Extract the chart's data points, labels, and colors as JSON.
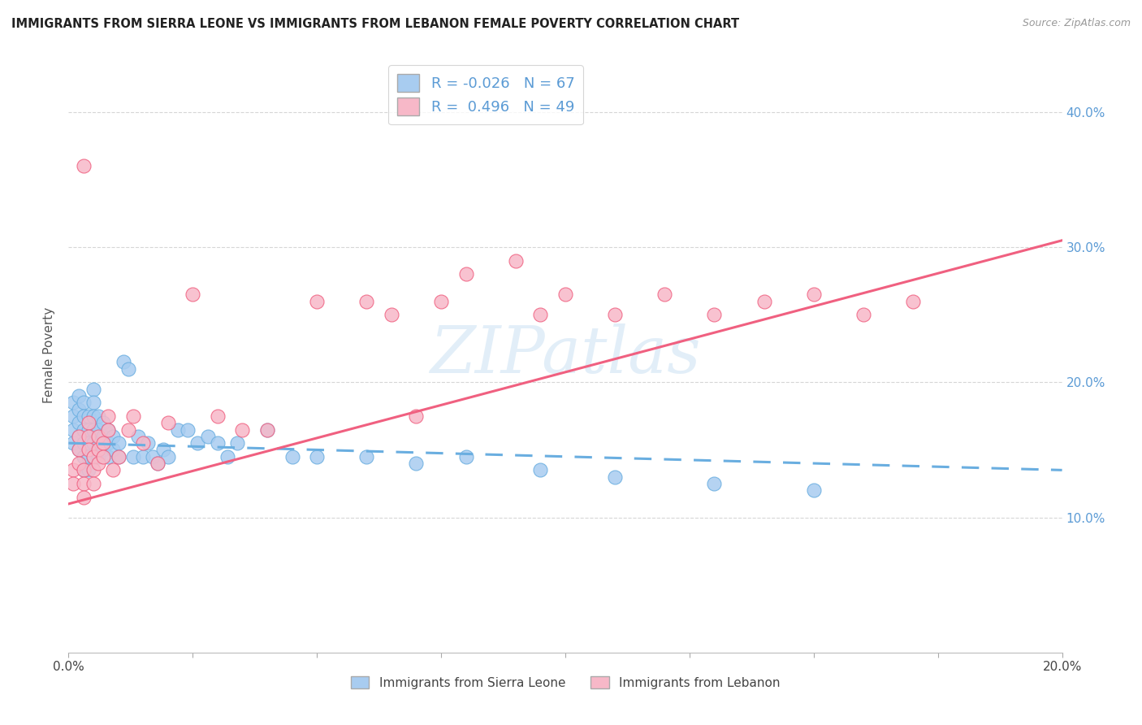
{
  "title": "IMMIGRANTS FROM SIERRA LEONE VS IMMIGRANTS FROM LEBANON FEMALE POVERTY CORRELATION CHART",
  "source": "Source: ZipAtlas.com",
  "ylabel": "Female Poverty",
  "r_sierra": -0.026,
  "n_sierra": 67,
  "r_lebanon": 0.496,
  "n_lebanon": 49,
  "xlim": [
    0.0,
    0.2
  ],
  "ylim": [
    0.0,
    0.44
  ],
  "yticks_right": [
    0.1,
    0.2,
    0.3,
    0.4
  ],
  "ytick_labels_right": [
    "10.0%",
    "20.0%",
    "30.0%",
    "40.0%"
  ],
  "xticks": [
    0.0,
    0.025,
    0.05,
    0.075,
    0.1,
    0.125,
    0.15,
    0.175,
    0.2
  ],
  "color_sierra": "#A8CCF0",
  "color_lebanon": "#F7B8C8",
  "color_trendline_sierra": "#6AAEE0",
  "color_trendline_lebanon": "#F06080",
  "background_color": "#ffffff",
  "watermark": "ZIPatlas",
  "sierra_leone_x": [
    0.001,
    0.001,
    0.001,
    0.001,
    0.002,
    0.002,
    0.002,
    0.002,
    0.002,
    0.003,
    0.003,
    0.003,
    0.003,
    0.003,
    0.003,
    0.004,
    0.004,
    0.004,
    0.004,
    0.004,
    0.005,
    0.005,
    0.005,
    0.005,
    0.005,
    0.005,
    0.006,
    0.006,
    0.006,
    0.006,
    0.007,
    0.007,
    0.007,
    0.008,
    0.008,
    0.008,
    0.009,
    0.009,
    0.01,
    0.01,
    0.011,
    0.012,
    0.013,
    0.014,
    0.015,
    0.016,
    0.017,
    0.018,
    0.019,
    0.02,
    0.022,
    0.024,
    0.026,
    0.028,
    0.03,
    0.032,
    0.034,
    0.04,
    0.045,
    0.05,
    0.06,
    0.07,
    0.08,
    0.095,
    0.11,
    0.13,
    0.15
  ],
  "sierra_leone_y": [
    0.185,
    0.175,
    0.165,
    0.155,
    0.19,
    0.18,
    0.17,
    0.16,
    0.15,
    0.185,
    0.175,
    0.165,
    0.155,
    0.145,
    0.135,
    0.175,
    0.165,
    0.155,
    0.145,
    0.135,
    0.195,
    0.185,
    0.175,
    0.165,
    0.155,
    0.145,
    0.175,
    0.165,
    0.155,
    0.145,
    0.17,
    0.16,
    0.15,
    0.165,
    0.155,
    0.145,
    0.16,
    0.15,
    0.155,
    0.145,
    0.215,
    0.21,
    0.145,
    0.16,
    0.145,
    0.155,
    0.145,
    0.14,
    0.15,
    0.145,
    0.165,
    0.165,
    0.155,
    0.16,
    0.155,
    0.145,
    0.155,
    0.165,
    0.145,
    0.145,
    0.145,
    0.14,
    0.145,
    0.135,
    0.13,
    0.125,
    0.12
  ],
  "lebanon_x": [
    0.001,
    0.001,
    0.002,
    0.002,
    0.002,
    0.003,
    0.003,
    0.003,
    0.003,
    0.004,
    0.004,
    0.004,
    0.005,
    0.005,
    0.005,
    0.006,
    0.006,
    0.006,
    0.007,
    0.007,
    0.008,
    0.008,
    0.009,
    0.01,
    0.012,
    0.013,
    0.015,
    0.018,
    0.02,
    0.025,
    0.03,
    0.035,
    0.04,
    0.05,
    0.06,
    0.065,
    0.07,
    0.075,
    0.08,
    0.09,
    0.095,
    0.1,
    0.11,
    0.12,
    0.13,
    0.14,
    0.15,
    0.16,
    0.17
  ],
  "lebanon_y": [
    0.135,
    0.125,
    0.16,
    0.15,
    0.14,
    0.36,
    0.135,
    0.125,
    0.115,
    0.17,
    0.16,
    0.15,
    0.145,
    0.135,
    0.125,
    0.16,
    0.15,
    0.14,
    0.155,
    0.145,
    0.175,
    0.165,
    0.135,
    0.145,
    0.165,
    0.175,
    0.155,
    0.14,
    0.17,
    0.265,
    0.175,
    0.165,
    0.165,
    0.26,
    0.26,
    0.25,
    0.175,
    0.26,
    0.28,
    0.29,
    0.25,
    0.265,
    0.25,
    0.265,
    0.25,
    0.26,
    0.265,
    0.25,
    0.26
  ],
  "sl_trendline_x": [
    0.0,
    0.2
  ],
  "sl_trendline_y": [
    0.155,
    0.135
  ],
  "lb_trendline_x": [
    0.0,
    0.2
  ],
  "lb_trendline_y": [
    0.11,
    0.305
  ]
}
